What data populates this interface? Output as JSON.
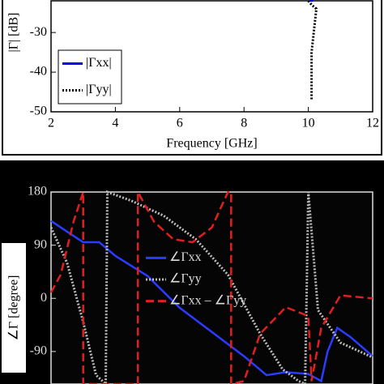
{
  "chart_data": [
    {
      "type": "line",
      "ylabel": "|Γ| [dB]",
      "xlabel": "Frequency [GHz]",
      "xlim": [
        2,
        12
      ],
      "xticks": [
        2,
        4,
        6,
        8,
        10,
        12
      ],
      "ylim": [
        -50,
        -22
      ],
      "yticks": [
        -30,
        -40,
        -50
      ],
      "series": [
        {
          "name": "|Γxx|",
          "color": "#0000ff",
          "style": "solid",
          "x": [
            10.05,
            10.15
          ],
          "values": [
            -22,
            -22
          ]
        },
        {
          "name": "|Γyy|",
          "color": "#000000",
          "style": "dotted",
          "x": [
            10.0,
            10.1,
            10.25,
            10.1,
            10.1
          ],
          "values": [
            -22,
            -23,
            -24,
            -35,
            -47
          ]
        }
      ]
    },
    {
      "type": "line",
      "ylabel": "∠Γ [degree]",
      "xlim": [
        2,
        12
      ],
      "ylim": [
        -145,
        180
      ],
      "yticks": [
        180,
        90,
        0,
        -90
      ],
      "series": [
        {
          "name": "∠Γxx",
          "color": "#2a3cff",
          "style": "solid",
          "x": [
            2,
            2.5,
            3,
            3.5,
            4,
            5,
            6,
            7,
            8,
            8.7,
            9.3,
            10,
            10.4,
            10.6,
            10.9,
            11.3,
            12
          ],
          "values": [
            131,
            113,
            95,
            95,
            72,
            38,
            -16,
            -57,
            -98,
            -130,
            -125,
            -128,
            -140,
            -90,
            -50,
            -65,
            -98
          ]
        },
        {
          "name": "∠Γyy",
          "color": "#bbbbbb",
          "style": "dotted",
          "x": [
            2,
            2.5,
            3,
            3.4,
            3.7,
            3.75,
            4.5,
            5.5,
            6.5,
            7.5,
            8.5,
            9.2,
            9.7,
            9.9,
            10.0,
            10.3,
            11,
            12
          ],
          "values": [
            120,
            60,
            -40,
            -130,
            -145,
            180,
            165,
            140,
            100,
            40,
            -60,
            -120,
            -140,
            -145,
            180,
            -20,
            -75,
            -100
          ]
        },
        {
          "name": "∠Γxx – ∠Γyy",
          "color": "#e02020",
          "style": "dashed",
          "x": [
            2,
            2.3,
            2.7,
            3.0,
            3.0,
            3.3,
            4.7,
            4.7,
            5.2,
            5.8,
            6.4,
            7.0,
            7.5,
            7.6,
            7.6,
            8.0,
            8.5,
            9.3,
            10.0,
            10.1,
            10.4,
            11,
            12
          ],
          "values": [
            10,
            40,
            130,
            180,
            -145,
            -145,
            -145,
            180,
            130,
            100,
            95,
            120,
            180,
            180,
            -145,
            -140,
            -60,
            -15,
            -30,
            -140,
            -50,
            5,
            0
          ]
        }
      ]
    }
  ]
}
